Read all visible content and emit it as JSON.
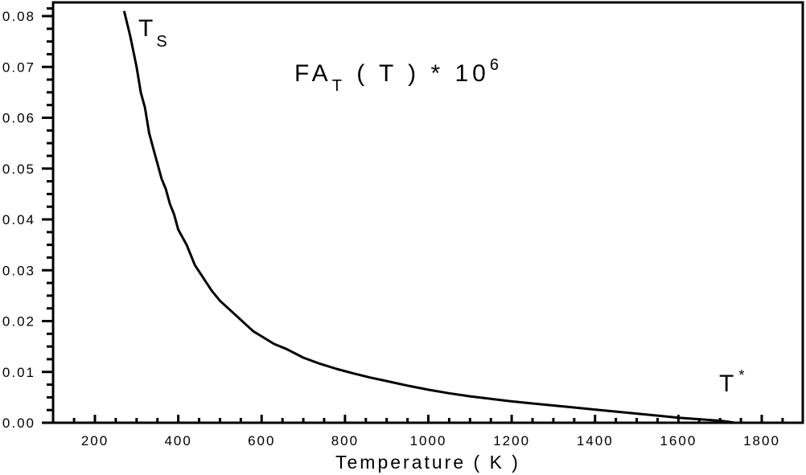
{
  "chart_data": {
    "type": "line",
    "title": "FA_T ( T ) * 10^6",
    "title_parts": {
      "main": "FA",
      "sub": "T",
      "rest": " ( T ) * 10",
      "sup": "6"
    },
    "xlabel": "Temperature ( K )",
    "ylabel": "",
    "xlim": [
      100,
      1900
    ],
    "ylim": [
      0.0,
      0.082
    ],
    "grid": false,
    "legend": null,
    "x_ticks": [
      "200",
      "400",
      "600",
      "800",
      "1000",
      "1200",
      "1400",
      "1600",
      "1800"
    ],
    "x_tick_values": [
      200,
      400,
      600,
      800,
      1000,
      1200,
      1400,
      1600,
      1800
    ],
    "y_ticks": [
      "0.00",
      "0.01",
      "0.02",
      "0.03",
      "0.04",
      "0.05",
      "0.06",
      "0.07",
      "0.08"
    ],
    "y_tick_values": [
      0.0,
      0.01,
      0.02,
      0.03,
      0.04,
      0.05,
      0.06,
      0.07,
      0.08
    ],
    "annotations": [
      {
        "text": "T",
        "sub": "S",
        "x": 300,
        "y": 0.078,
        "meaning": "T_S start point"
      },
      {
        "text": "T",
        "sup": "*",
        "x": 1720,
        "y": 0.008,
        "meaning": "T* end point"
      }
    ],
    "series": [
      {
        "name": "FA_T(T)*10^6",
        "x": [
          270,
          285,
          300,
          310,
          320,
          330,
          340,
          350,
          360,
          370,
          380,
          390,
          400,
          420,
          440,
          460,
          480,
          500,
          520,
          540,
          560,
          580,
          600,
          630,
          660,
          700,
          740,
          780,
          820,
          860,
          900,
          950,
          1000,
          1050,
          1100,
          1150,
          1200,
          1250,
          1300,
          1350,
          1400,
          1450,
          1500,
          1550,
          1600,
          1650,
          1700,
          1720,
          1735
        ],
        "y": [
          0.081,
          0.076,
          0.07,
          0.065,
          0.062,
          0.057,
          0.054,
          0.051,
          0.048,
          0.046,
          0.043,
          0.041,
          0.038,
          0.035,
          0.031,
          0.0285,
          0.026,
          0.024,
          0.0225,
          0.021,
          0.0195,
          0.018,
          0.017,
          0.0155,
          0.0145,
          0.0128,
          0.0116,
          0.0106,
          0.0097,
          0.0089,
          0.0082,
          0.0073,
          0.0065,
          0.0058,
          0.0052,
          0.0047,
          0.0042,
          0.0038,
          0.0034,
          0.003,
          0.0026,
          0.0022,
          0.0018,
          0.0014,
          0.001,
          0.0007,
          0.0004,
          0.0002,
          0.0
        ]
      }
    ]
  }
}
